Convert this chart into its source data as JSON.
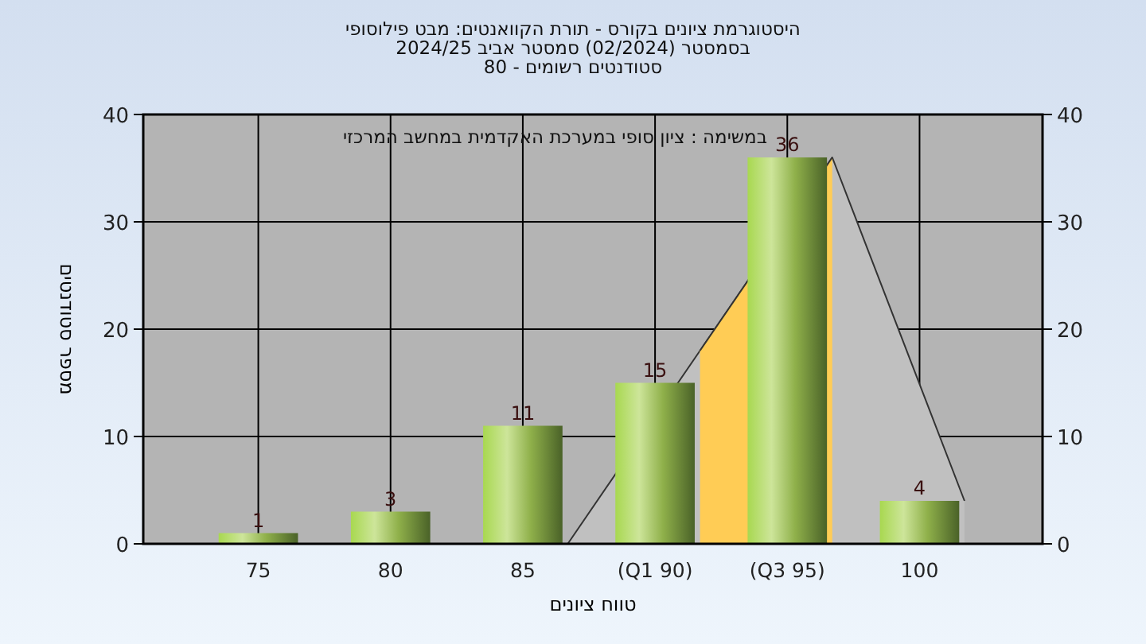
{
  "chart_data": {
    "type": "bar",
    "title": "היסטוגרמת ציונים בקורס - תורת הקוואנטים: מבט פילוסופי",
    "subtitle": "בסמסטר  (02/2024)  סמסטר אביב 2024/25\nסטודנטים רשומים - 80",
    "xlabel": "טווח ציונים",
    "ylabel": "מספר סטודנטים",
    "annotations": [
      "במשימה : ציון סופי במערכת האקדמית במחשב המרכזי"
    ],
    "categories": [
      "75",
      "80",
      "85",
      "(Q1 90)",
      "(Q3 95)",
      "100"
    ],
    "series": [
      {
        "type": "area",
        "color": "#c0c0c0",
        "values": [
          null,
          null,
          0,
          18,
          36,
          4
        ]
      },
      {
        "type": "area",
        "color": "#ffcc55",
        "values": [
          null,
          null,
          null,
          18,
          36,
          null
        ]
      },
      {
        "color": "#8fb04a",
        "values": [
          1,
          3,
          11,
          15,
          36,
          4
        ],
        "value_labels": [
          "1",
          "3",
          "11",
          "15",
          "36",
          "4"
        ]
      }
    ],
    "ylim": [
      0,
      40
    ],
    "yticks": [
      0,
      10,
      20,
      30,
      40
    ],
    "y2lim": [
      0,
      40
    ],
    "y2ticks": [
      0,
      10,
      20,
      30,
      40
    ],
    "grid": true
  }
}
